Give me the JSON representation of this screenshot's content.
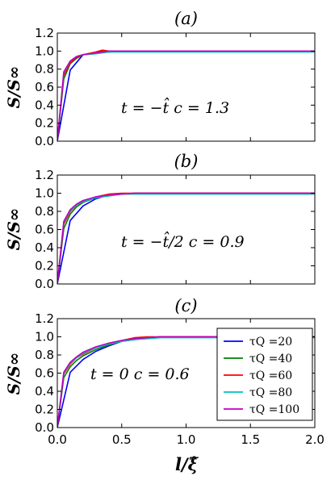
{
  "figure": {
    "ylabel": "S/S∞",
    "xlabel": "l/ξ̂"
  },
  "legend": {
    "placement": "lower-right of panel (c)",
    "entries": [
      {
        "label": "τQ =20",
        "color": "#0000ff"
      },
      {
        "label": "τQ =40",
        "color": "#008000"
      },
      {
        "label": "τQ =60",
        "color": "#ff0000"
      },
      {
        "label": "τQ =80",
        "color": "#00bfbf"
      },
      {
        "label": "τQ =100",
        "color": "#bf00bf"
      }
    ]
  },
  "chart_data": [
    {
      "type": "line",
      "panel": "(a)",
      "title": "(a)",
      "annotation": "t = −t̂   c = 1.3",
      "ylabel": "S/S∞",
      "xlim": [
        0,
        2.0
      ],
      "ylim": [
        0,
        1.2
      ],
      "xticks": [
        "0.0",
        "0.5",
        "1.0",
        "1.5",
        "2.0"
      ],
      "yticks": [
        "0.0",
        "0.2",
        "0.4",
        "0.6",
        "0.8",
        "1.0",
        "1.2"
      ],
      "x_tick_labels_visible": false,
      "series": [
        {
          "name": "τQ =20",
          "color": "#0000ff",
          "x": [
            0,
            0.1,
            0.2,
            0.3,
            0.4,
            0.5,
            1.0,
            2.0
          ],
          "y": [
            0,
            0.79,
            0.96,
            0.98,
            0.99,
            1.0,
            1.0,
            1.0
          ]
        },
        {
          "name": "τQ =40",
          "color": "#008000",
          "x": [
            0,
            0.05,
            0.1,
            0.15,
            0.2,
            0.3,
            0.35,
            0.4,
            0.5,
            1.0,
            2.0
          ],
          "y": [
            0,
            0.69,
            0.86,
            0.92,
            0.96,
            0.98,
            1.0,
            1.0,
            1.0,
            1.0,
            1.0
          ]
        },
        {
          "name": "τQ =60",
          "color": "#ff0000",
          "x": [
            0,
            0.05,
            0.1,
            0.15,
            0.2,
            0.3,
            0.35,
            0.4,
            0.5,
            1.0,
            2.0
          ],
          "y": [
            0,
            0.73,
            0.87,
            0.93,
            0.96,
            0.99,
            1.01,
            1.0,
            1.0,
            1.0,
            1.0
          ]
        },
        {
          "name": "τQ =80",
          "color": "#00bfbf",
          "x": [
            0,
            0.05,
            0.1,
            0.15,
            0.2,
            0.3,
            0.4,
            0.5,
            1.0,
            2.0
          ],
          "y": [
            0,
            0.76,
            0.89,
            0.94,
            0.96,
            0.97,
            0.99,
            0.99,
            0.99,
            0.99
          ]
        },
        {
          "name": "τQ =100",
          "color": "#bf00bf",
          "x": [
            0,
            0.05,
            0.1,
            0.15,
            0.2,
            0.3,
            0.4,
            0.5,
            1.0,
            2.0
          ],
          "y": [
            0,
            0.77,
            0.89,
            0.94,
            0.96,
            0.98,
            1.0,
            1.0,
            1.0,
            1.0
          ]
        }
      ]
    },
    {
      "type": "line",
      "panel": "(b)",
      "title": "(b)",
      "annotation": "t = −t̂/2   c = 0.9",
      "ylabel": "S/S∞",
      "xlim": [
        0,
        2.0
      ],
      "ylim": [
        0,
        1.2
      ],
      "xticks": [
        "0.0",
        "0.5",
        "1.0",
        "1.5",
        "2.0"
      ],
      "yticks": [
        "0.0",
        "0.2",
        "0.4",
        "0.6",
        "0.8",
        "1.0",
        "1.2"
      ],
      "x_tick_labels_visible": false,
      "series": [
        {
          "name": "τQ =20",
          "color": "#0000ff",
          "x": [
            0,
            0.1,
            0.2,
            0.3,
            0.4,
            0.5,
            0.6,
            1.0,
            2.0
          ],
          "y": [
            0,
            0.7,
            0.86,
            0.94,
            0.98,
            0.99,
            1.0,
            1.0,
            1.0
          ]
        },
        {
          "name": "τQ =40",
          "color": "#008000",
          "x": [
            0,
            0.05,
            0.1,
            0.15,
            0.2,
            0.3,
            0.4,
            0.5,
            0.6,
            1.0,
            2.0
          ],
          "y": [
            0,
            0.61,
            0.77,
            0.85,
            0.9,
            0.95,
            0.98,
            0.99,
            1.0,
            1.0,
            1.0
          ]
        },
        {
          "name": "τQ =60",
          "color": "#ff0000",
          "x": [
            0,
            0.05,
            0.1,
            0.15,
            0.2,
            0.3,
            0.4,
            0.5,
            0.6,
            1.0,
            2.0
          ],
          "y": [
            0,
            0.66,
            0.8,
            0.87,
            0.91,
            0.96,
            0.99,
            1.0,
            1.0,
            1.0,
            1.0
          ]
        },
        {
          "name": "τQ =80",
          "color": "#00bfbf",
          "x": [
            0,
            0.05,
            0.1,
            0.15,
            0.2,
            0.3,
            0.4,
            0.5,
            0.6,
            1.0,
            2.0
          ],
          "y": [
            0,
            0.68,
            0.81,
            0.87,
            0.91,
            0.95,
            0.97,
            0.99,
            0.99,
            0.99,
            0.99
          ]
        },
        {
          "name": "τQ =100",
          "color": "#bf00bf",
          "x": [
            0,
            0.05,
            0.1,
            0.15,
            0.2,
            0.3,
            0.4,
            0.5,
            0.6,
            1.0,
            2.0
          ],
          "y": [
            0,
            0.69,
            0.82,
            0.88,
            0.92,
            0.96,
            0.98,
            0.99,
            1.0,
            1.0,
            1.0
          ]
        }
      ]
    },
    {
      "type": "line",
      "panel": "(c)",
      "title": "(c)",
      "annotation": "t = 0   c = 0.6",
      "ylabel": "S/S∞",
      "xlabel": "l/ξ̂",
      "xlim": [
        0,
        2.0
      ],
      "ylim": [
        0,
        1.2
      ],
      "xticks": [
        "0.0",
        "0.5",
        "1.0",
        "1.5",
        "2.0"
      ],
      "yticks": [
        "0.0",
        "0.2",
        "0.4",
        "0.6",
        "0.8",
        "1.0",
        "1.2"
      ],
      "x_tick_labels_visible": true,
      "series": [
        {
          "name": "τQ =20",
          "color": "#0000ff",
          "x": [
            0,
            0.1,
            0.2,
            0.3,
            0.4,
            0.5,
            0.6,
            0.7,
            0.8,
            1.0,
            1.5,
            2.0
          ],
          "y": [
            0,
            0.61,
            0.75,
            0.84,
            0.9,
            0.95,
            0.97,
            0.99,
            1.0,
            1.0,
            1.0,
            1.0
          ]
        },
        {
          "name": "τQ =40",
          "color": "#008000",
          "x": [
            0,
            0.05,
            0.1,
            0.15,
            0.2,
            0.3,
            0.4,
            0.5,
            0.6,
            0.7,
            0.8,
            1.0,
            1.5,
            2.0
          ],
          "y": [
            0,
            0.55,
            0.67,
            0.74,
            0.79,
            0.86,
            0.91,
            0.95,
            0.98,
            0.99,
            1.0,
            1.0,
            1.0,
            1.0
          ]
        },
        {
          "name": "τQ =60",
          "color": "#ff0000",
          "x": [
            0,
            0.05,
            0.1,
            0.15,
            0.2,
            0.3,
            0.4,
            0.5,
            0.6,
            0.7,
            0.8,
            1.0,
            1.5,
            2.0
          ],
          "y": [
            0,
            0.59,
            0.7,
            0.77,
            0.81,
            0.88,
            0.93,
            0.96,
            0.99,
            1.0,
            1.0,
            1.0,
            1.0,
            1.0
          ]
        },
        {
          "name": "τQ =80",
          "color": "#00bfbf",
          "x": [
            0,
            0.05,
            0.1,
            0.15,
            0.2,
            0.3,
            0.4,
            0.5,
            0.6,
            0.7,
            0.8,
            1.0,
            1.5,
            2.0
          ],
          "y": [
            0,
            0.6,
            0.71,
            0.77,
            0.82,
            0.88,
            0.92,
            0.95,
            0.97,
            0.98,
            0.99,
            0.99,
            0.99,
            0.99
          ]
        },
        {
          "name": "τQ =100",
          "color": "#bf00bf",
          "x": [
            0,
            0.05,
            0.1,
            0.15,
            0.2,
            0.3,
            0.4,
            0.5,
            0.6,
            0.7,
            0.8,
            1.0,
            1.5,
            2.0
          ],
          "y": [
            0,
            0.61,
            0.72,
            0.78,
            0.83,
            0.89,
            0.93,
            0.96,
            0.98,
            0.99,
            1.0,
            1.0,
            1.0,
            1.0
          ]
        }
      ]
    }
  ]
}
